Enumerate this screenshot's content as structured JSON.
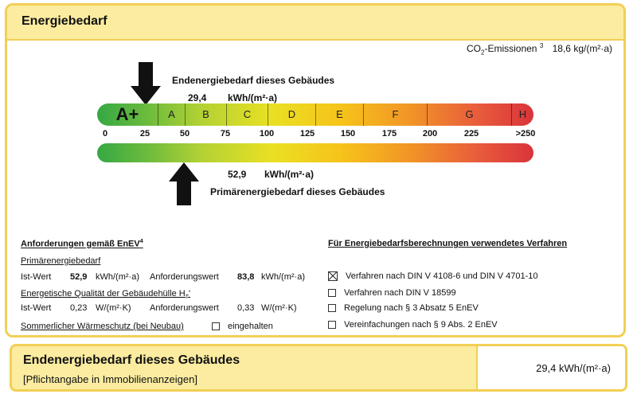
{
  "header": {
    "title": "Energiebedarf"
  },
  "co2": {
    "label_prefix": "CO",
    "label_sub": "2",
    "label_rest": "-Emissionen",
    "footnote": "3",
    "value": "18,6",
    "unit": "kg/(m²·a)"
  },
  "end_energy": {
    "label": "Endenergiebedarf dieses Gebäudes",
    "value": "29,4",
    "unit": "kWh/(m²·a)"
  },
  "primary_energy": {
    "label": "Primärenergiebedarf dieses Gebäudes",
    "value": "52,9",
    "unit": "kWh/(m²·a)"
  },
  "scale": {
    "classes": [
      "A+",
      "A",
      "B",
      "C",
      "D",
      "E",
      "F",
      "G",
      "H"
    ],
    "ticks": [
      "0",
      "25",
      "50",
      "75",
      "100",
      "125",
      "150",
      "175",
      "200",
      "225",
      ">250"
    ]
  },
  "requirements": {
    "heading": "Anforderungen gemäß EnEV",
    "heading_footnote": "4",
    "primary_title": "Primärenergiebedarf",
    "ist_label": "Ist-Wert",
    "primary_ist_value": "52,9",
    "primary_unit": "kWh/(m²·a)",
    "anf_label": "Anforderungswert",
    "primary_anf_value": "83,8",
    "quality_title": "Energetische Qualität der Gebäudehülle H",
    "quality_sub": "T",
    "quality_suffix": "'",
    "quality_ist_value": "0,23",
    "quality_unit": "W/(m²·K)",
    "quality_anf_value": "0,33",
    "summer_label": "Sommerlicher Wärmeschutz (bei Neubau)",
    "summer_check_label": "eingehalten"
  },
  "methods": {
    "heading": "Für Energiebedarfsberechnungen verwendetes Verfahren",
    "items": [
      {
        "label": "Verfahren nach DIN V 4108-6 und DIN V 4701-10",
        "checked": true
      },
      {
        "label": "Verfahren nach DIN V 18599",
        "checked": false
      },
      {
        "label": "Regelung nach § 3 Absatz 5 EnEV",
        "checked": false
      },
      {
        "label": "Vereinfachungen nach § 9 Abs. 2 EnEV",
        "checked": false
      }
    ]
  },
  "footer": {
    "title": "Endenergiebedarf dieses Gebäudes",
    "subtitle": "[Pflichtangabe in Immobilienanzeigen]",
    "value": "29,4 kWh/(m²·a)"
  },
  "colors": {
    "frame": "#f2cf55",
    "header_fill": "#fbeca0",
    "scale_green": "#35a844",
    "scale_red": "#d9343a"
  }
}
